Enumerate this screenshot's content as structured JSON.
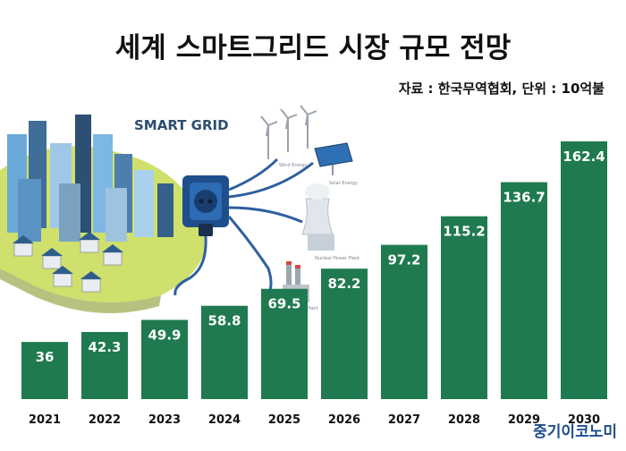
{
  "title": "세계 스마트그리드 시장 규모 전망",
  "source_note": "자료 : 한국무역협회, 단위 : 10억불",
  "illustration": {
    "heading": "SMART GRID",
    "labels": [
      "Wind Energy",
      "Solar Energy",
      "Nuclear Power Plant",
      "Thermal Power Plant"
    ]
  },
  "watermark": "중기이코노미",
  "colors": {
    "bar": "#1f7a4f",
    "bar_label": "#ffffff",
    "title": "#111111"
  },
  "chart_data": {
    "type": "bar",
    "title": "세계 스마트그리드 시장 규모 전망",
    "unit_note": "자료 : 한국무역협회, 단위 : 10억불",
    "categories": [
      "2021",
      "2022",
      "2023",
      "2024",
      "2025",
      "2026",
      "2027",
      "2028",
      "2029",
      "2030"
    ],
    "values": [
      36,
      42.3,
      49.9,
      58.8,
      69.5,
      82.2,
      97.2,
      115.2,
      136.7,
      162.4
    ],
    "value_labels": [
      "36",
      "42.3",
      "49.9",
      "58.8",
      "69.5",
      "82.2",
      "97.2",
      "115.2",
      "136.7",
      "162.4"
    ],
    "ylim": [
      0,
      162.4
    ],
    "grid": false,
    "legend": "none"
  }
}
